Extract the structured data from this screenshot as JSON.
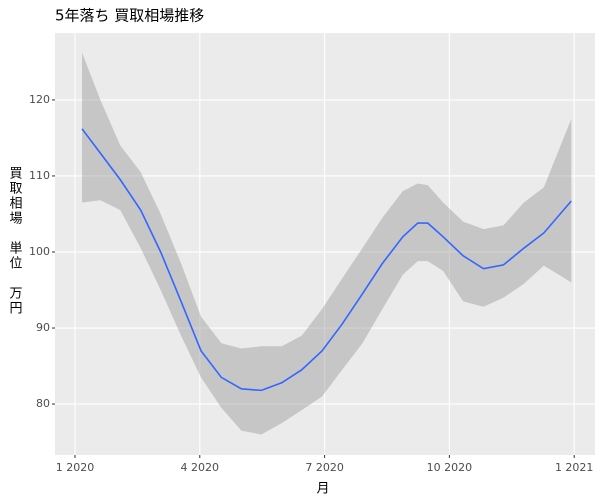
{
  "chart_data": {
    "type": "line",
    "title": "5年落ち 買取相場推移",
    "xlabel": "月",
    "ylabel": "買取相場　単位　万円",
    "x": [
      1.17,
      1.61,
      2.09,
      2.58,
      3.06,
      3.55,
      4.03,
      4.52,
      5.0,
      5.48,
      5.97,
      6.45,
      6.94,
      7.42,
      7.91,
      8.39,
      8.88,
      9.24,
      9.48,
      9.85,
      10.33,
      10.82,
      11.3,
      11.79,
      12.27,
      12.93
    ],
    "values": [
      116.2,
      113,
      109.5,
      105.5,
      100,
      93.5,
      87,
      83.5,
      82,
      81.8,
      82.8,
      84.5,
      87,
      90.5,
      94.5,
      98.5,
      102,
      103.8,
      103.8,
      102,
      99.5,
      97.8,
      98.3,
      100.5,
      102.5,
      106.7
    ],
    "lower": [
      106.5,
      106.8,
      105.5,
      100.5,
      95,
      89,
      83.5,
      79.5,
      76.5,
      76,
      77.5,
      79.2,
      81,
      84.5,
      88,
      92.5,
      97,
      98.8,
      98.8,
      97.5,
      93.5,
      92.8,
      94,
      95.8,
      98.2,
      96
    ],
    "upper": [
      126.2,
      120,
      114,
      110.5,
      105,
      98.5,
      91.5,
      88,
      87.3,
      87.6,
      87.6,
      89,
      92.5,
      96.5,
      100.5,
      104.5,
      108,
      109,
      108.8,
      106.5,
      104,
      103,
      103.5,
      106.5,
      108.5,
      117.5
    ],
    "color": "#3366ff",
    "band_color": "#999999",
    "xlim": [
      0.52,
      13.5
    ],
    "ylim": [
      73.3,
      128.8
    ],
    "xticks": [
      {
        "value": 1,
        "label": "1 2020"
      },
      {
        "value": 4,
        "label": "4 2020"
      },
      {
        "value": 7,
        "label": "7 2020"
      },
      {
        "value": 10,
        "label": "10 2020"
      },
      {
        "value": 13,
        "label": "1 2021"
      }
    ],
    "yticks": [
      80,
      90,
      100,
      110,
      120
    ],
    "grid": true
  }
}
